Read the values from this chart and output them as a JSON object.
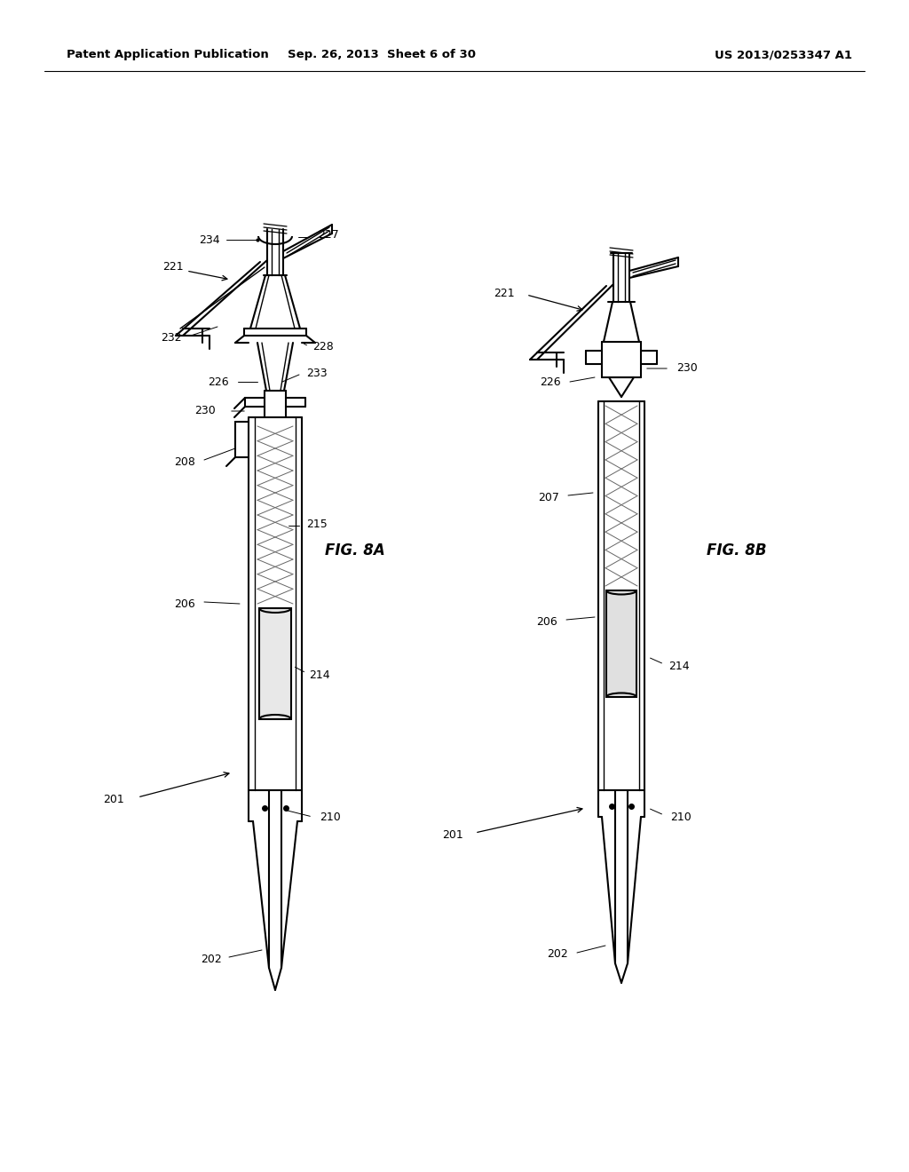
{
  "header_left": "Patent Application Publication",
  "header_center": "Sep. 26, 2013  Sheet 6 of 30",
  "header_right": "US 2013/0253347 A1",
  "fig_label_A": "FIG. 8A",
  "fig_label_B": "FIG. 8B",
  "background_color": "#ffffff",
  "line_color": "#000000"
}
